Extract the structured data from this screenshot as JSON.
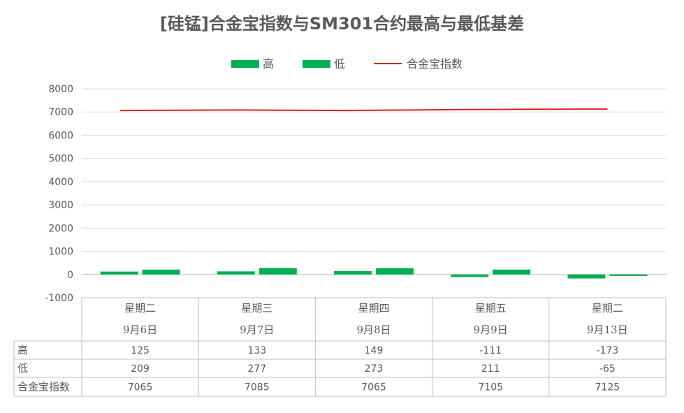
{
  "chart_data": {
    "type": "bar",
    "title": "[硅锰]合金宝指数与SM301合约最高与最低基差",
    "categories": [
      {
        "weekday": "星期二",
        "date": "9月6日"
      },
      {
        "weekday": "星期三",
        "date": "9月7日"
      },
      {
        "weekday": "星期四",
        "date": "9月8日"
      },
      {
        "weekday": "星期五",
        "date": "9月9日"
      },
      {
        "weekday": "星期二",
        "date": "9月13日"
      }
    ],
    "series": [
      {
        "name": "高",
        "type": "bar",
        "color": "#00b050",
        "values": [
          125,
          133,
          149,
          -111,
          -173
        ]
      },
      {
        "name": "低",
        "type": "bar",
        "color": "#00b050",
        "values": [
          209,
          277,
          273,
          211,
          -65
        ]
      },
      {
        "name": "合金宝指数",
        "type": "line",
        "color": "#e02020",
        "values": [
          7065,
          7085,
          7065,
          7105,
          7125
        ]
      }
    ],
    "ylim": [
      -1000,
      8000
    ],
    "yticks": [
      "8000",
      "7000",
      "6000",
      "5000",
      "4000",
      "3000",
      "2000",
      "1000",
      "0",
      "-1000"
    ],
    "grid": true,
    "legend_position": "top-center",
    "data_table": true
  }
}
